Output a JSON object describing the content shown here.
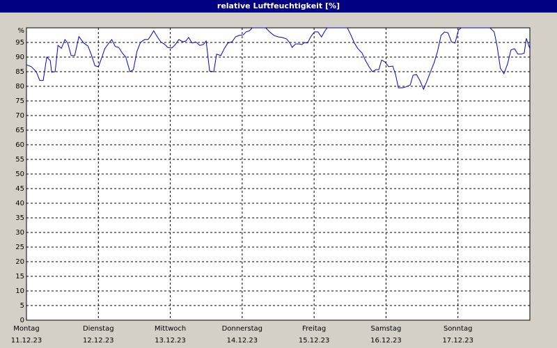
{
  "chart_data": {
    "type": "line",
    "title": "relative Luftfeuchtigkeit [%]",
    "color": "#0000cc",
    "xlim": [
      0,
      7
    ],
    "xticks": [
      0,
      1,
      2,
      3,
      4,
      5,
      6
    ],
    "xtick_days": [
      "Montag",
      "Dienstag",
      "Mittwoch",
      "Donnerstag",
      "Freitag",
      "Samstag",
      "Sonntag"
    ],
    "xtick_dates": [
      "11.12.23",
      "12.12.23",
      "13.12.23",
      "14.12.23",
      "15.12.23",
      "16.12.23",
      "17.12.23"
    ],
    "ylim": [
      0,
      100
    ],
    "yticks": [
      0,
      5,
      10,
      15,
      20,
      25,
      30,
      35,
      40,
      45,
      50,
      55,
      60,
      65,
      70,
      75,
      80,
      85,
      90,
      95,
      {
        "value": 100,
        "label": "%"
      }
    ],
    "grid": true,
    "x": [
      0,
      0.068,
      0.136,
      0.185,
      0.233,
      0.282,
      0.331,
      0.35,
      0.399,
      0.438,
      0.486,
      0.535,
      0.574,
      0.622,
      0.671,
      0.729,
      0.797,
      0.855,
      0.904,
      0.953,
      1.001,
      1.05,
      1.089,
      1.147,
      1.186,
      1.235,
      1.283,
      1.332,
      1.381,
      1.439,
      1.487,
      1.536,
      1.585,
      1.643,
      1.692,
      1.731,
      1.769,
      1.818,
      1.867,
      1.925,
      1.964,
      2.022,
      2.071,
      2.119,
      2.178,
      2.217,
      2.255,
      2.304,
      2.353,
      2.411,
      2.46,
      2.499,
      2.547,
      2.605,
      2.644,
      2.703,
      2.751,
      2.8,
      2.858,
      2.907,
      2.956,
      3.014,
      3.053,
      3.101,
      3.14,
      3.325,
      3.383,
      3.442,
      3.5,
      3.558,
      3.617,
      3.665,
      3.694,
      3.743,
      3.792,
      3.83,
      3.869,
      3.908,
      3.957,
      4.005,
      4.054,
      4.103,
      4.142,
      4.181,
      4.462,
      4.511,
      4.56,
      4.608,
      4.667,
      4.715,
      4.764,
      4.812,
      4.861,
      4.9,
      4.939,
      4.987,
      5.036,
      5.094,
      5.133,
      5.172,
      5.23,
      5.279,
      5.337,
      5.376,
      5.425,
      5.473,
      5.522,
      5.571,
      5.619,
      5.668,
      5.716,
      5.765,
      5.814,
      5.862,
      5.911,
      5.96,
      6.008,
      6.047,
      6.446,
      6.504,
      6.543,
      6.59,
      6.64,
      6.689,
      6.737,
      6.786,
      6.834,
      6.883,
      6.922,
      6.951,
      7.0
    ],
    "values": [
      87.4,
      86.7,
      85,
      82,
      82,
      90,
      88.8,
      84.8,
      85,
      94,
      93,
      96,
      94.8,
      90.5,
      90.5,
      97,
      94.8,
      93.8,
      90.7,
      87,
      86.7,
      90,
      92.9,
      94.8,
      96,
      93.6,
      93.3,
      91.4,
      90,
      85,
      85.7,
      91.9,
      95,
      96,
      96,
      97.4,
      99,
      97,
      95.2,
      94.3,
      93.3,
      93.1,
      94.3,
      96,
      95.2,
      95.5,
      96.7,
      94.8,
      95.2,
      94,
      94.3,
      95.5,
      85.2,
      85,
      91,
      90.5,
      92.9,
      94.8,
      95.2,
      96.9,
      97.4,
      97.6,
      98.6,
      99,
      100,
      100,
      98.6,
      97.4,
      96.9,
      96.7,
      96.2,
      94.8,
      93.3,
      94.5,
      94.5,
      94.3,
      95,
      94.8,
      97.1,
      98.6,
      98.6,
      96.9,
      98.6,
      100,
      100,
      97.6,
      94.8,
      92.9,
      91.4,
      88.8,
      86.7,
      85,
      85.7,
      85.7,
      89,
      88.3,
      86.7,
      86.9,
      84,
      79.5,
      79.5,
      79.8,
      80.5,
      83.8,
      84,
      81.9,
      79,
      81.9,
      85,
      88,
      91.9,
      97.4,
      98.6,
      98.3,
      95.2,
      94.8,
      99.3,
      100,
      100,
      98.6,
      94,
      86.2,
      84.3,
      87.6,
      92.4,
      92.9,
      91,
      91,
      91.4,
      96.4,
      92.9
    ]
  }
}
